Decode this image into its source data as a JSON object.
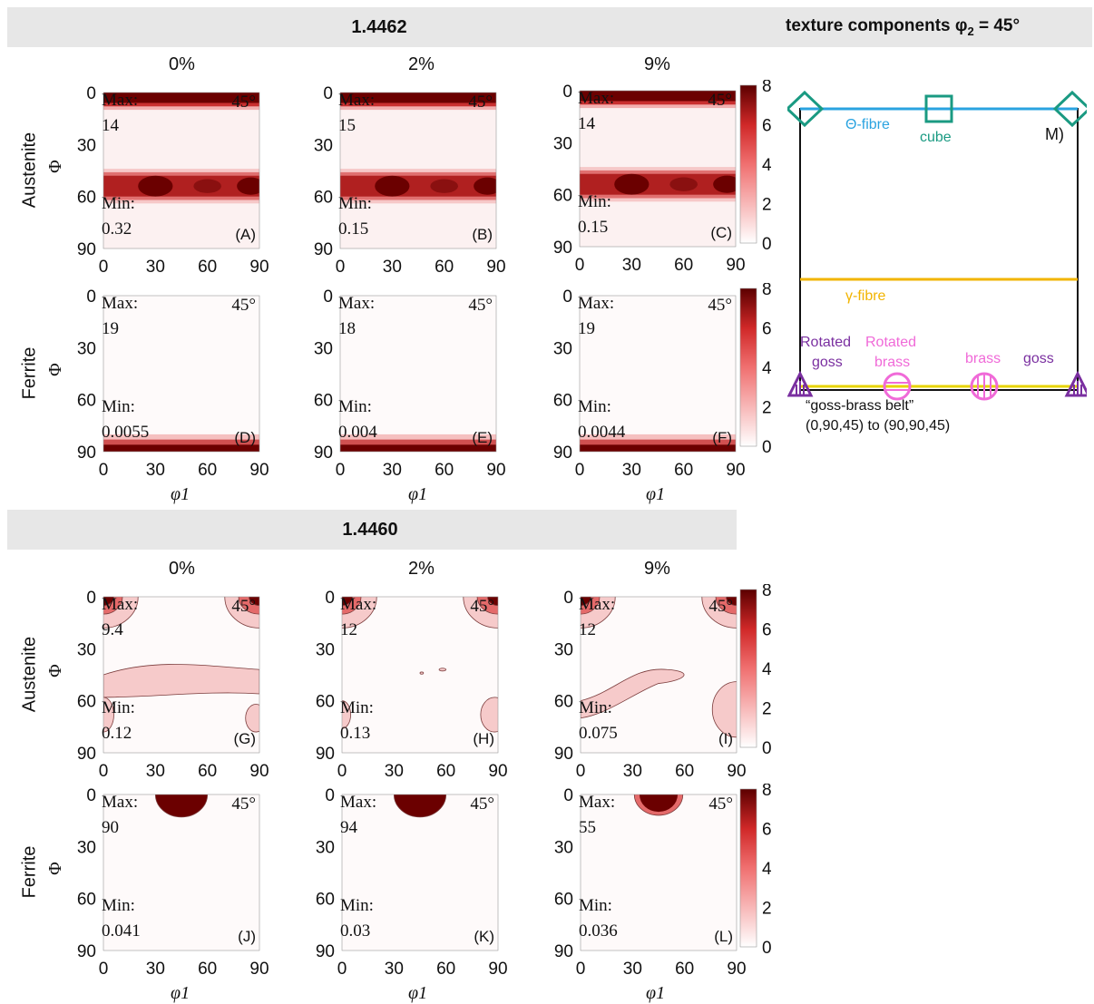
{
  "header": {
    "top_title": "1.4462",
    "bottom_title": "1.4460",
    "texture_title": "texture components φ",
    "texture_sub": "2",
    "texture_tail": " = 45°"
  },
  "columns": [
    "0%",
    "2%",
    "9%"
  ],
  "rows": {
    "austenite": "Austenite",
    "ferrite": "Ferrite"
  },
  "labels": {
    "max": "Max:",
    "min": "Min:",
    "angle": "45°",
    "phi": "Φ",
    "phi1": "φ1"
  },
  "colors": {
    "dark": "#6b0000",
    "mid": "#e84b4b",
    "light": "#fbe9ea",
    "banner": "#e7e7e7",
    "theta": "#2aa3e0",
    "gamma": "#f2b400",
    "belt": "#e7d400",
    "cube": "#1a9a82",
    "goss": "#7a2fa0",
    "brass": "#f06ad8"
  },
  "chart_data": [
    {
      "type": "heatmap",
      "panel": "(A)",
      "group": "1.4462",
      "phase": "Austenite",
      "strain": "0%",
      "max": "14",
      "min": "0.32",
      "xlim": [
        0,
        90
      ],
      "ylim": [
        0,
        90
      ],
      "xticks": [
        "0",
        "30",
        "60",
        "90"
      ],
      "yticks": [
        "0",
        "30",
        "60",
        "90"
      ],
      "pattern": "bands"
    },
    {
      "type": "heatmap",
      "panel": "(B)",
      "group": "1.4462",
      "phase": "Austenite",
      "strain": "2%",
      "max": "15",
      "min": "0.15",
      "xlim": [
        0,
        90
      ],
      "ylim": [
        0,
        90
      ],
      "xticks": [
        "0",
        "30",
        "60",
        "90"
      ],
      "yticks": [
        "0",
        "30",
        "60",
        "90"
      ],
      "pattern": "bands"
    },
    {
      "type": "heatmap",
      "panel": "(C)",
      "group": "1.4462",
      "phase": "Austenite",
      "strain": "9%",
      "max": "14",
      "min": "0.15",
      "xlim": [
        0,
        90
      ],
      "ylim": [
        0,
        90
      ],
      "xticks": [
        "0",
        "30",
        "60",
        "90"
      ],
      "yticks": [
        "0",
        "30",
        "60",
        "90"
      ],
      "pattern": "bands"
    },
    {
      "type": "heatmap",
      "panel": "(D)",
      "group": "1.4462",
      "phase": "Ferrite",
      "strain": "0%",
      "max": "19",
      "min": "0.0055",
      "xlim": [
        0,
        90
      ],
      "ylim": [
        0,
        90
      ],
      "xticks": [
        "0",
        "30",
        "60",
        "90"
      ],
      "yticks": [
        "0",
        "30",
        "60",
        "90"
      ],
      "pattern": "bottom"
    },
    {
      "type": "heatmap",
      "panel": "(E)",
      "group": "1.4462",
      "phase": "Ferrite",
      "strain": "2%",
      "max": "18",
      "min": "0.004",
      "xlim": [
        0,
        90
      ],
      "ylim": [
        0,
        90
      ],
      "xticks": [
        "0",
        "30",
        "60",
        "90"
      ],
      "yticks": [
        "0",
        "30",
        "60",
        "90"
      ],
      "pattern": "bottom"
    },
    {
      "type": "heatmap",
      "panel": "(F)",
      "group": "1.4462",
      "phase": "Ferrite",
      "strain": "9%",
      "max": "19",
      "min": "0.0044",
      "xlim": [
        0,
        90
      ],
      "ylim": [
        0,
        90
      ],
      "xticks": [
        "0",
        "30",
        "60",
        "90"
      ],
      "yticks": [
        "0",
        "30",
        "60",
        "90"
      ],
      "pattern": "bottom"
    },
    {
      "type": "heatmap",
      "panel": "(G)",
      "group": "1.4460",
      "phase": "Austenite",
      "strain": "0%",
      "max": "9.4",
      "min": "0.12",
      "xlim": [
        0,
        90
      ],
      "ylim": [
        0,
        90
      ],
      "xticks": [
        "0",
        "30",
        "60",
        "90"
      ],
      "yticks": [
        "0",
        "30",
        "60",
        "90"
      ],
      "pattern": "corners_band"
    },
    {
      "type": "heatmap",
      "panel": "(H)",
      "group": "1.4460",
      "phase": "Austenite",
      "strain": "2%",
      "max": "12",
      "min": "0.13",
      "xlim": [
        0,
        90
      ],
      "ylim": [
        0,
        90
      ],
      "xticks": [
        "0",
        "30",
        "60",
        "90"
      ],
      "yticks": [
        "0",
        "30",
        "60",
        "90"
      ],
      "pattern": "corners"
    },
    {
      "type": "heatmap",
      "panel": "(I)",
      "group": "1.4460",
      "phase": "Austenite",
      "strain": "9%",
      "max": "12",
      "min": "0.075",
      "xlim": [
        0,
        90
      ],
      "ylim": [
        0,
        90
      ],
      "xticks": [
        "0",
        "30",
        "60",
        "90"
      ],
      "yticks": [
        "0",
        "30",
        "60",
        "90"
      ],
      "pattern": "corners_blob"
    },
    {
      "type": "heatmap",
      "panel": "(J)",
      "group": "1.4460",
      "phase": "Ferrite",
      "strain": "0%",
      "max": "90",
      "min": "0.041",
      "xlim": [
        0,
        90
      ],
      "ylim": [
        0,
        90
      ],
      "xticks": [
        "0",
        "30",
        "60",
        "90"
      ],
      "yticks": [
        "0",
        "30",
        "60",
        "90"
      ],
      "pattern": "top_center"
    },
    {
      "type": "heatmap",
      "panel": "(K)",
      "group": "1.4460",
      "phase": "Ferrite",
      "strain": "2%",
      "max": "94",
      "min": "0.03",
      "xlim": [
        0,
        90
      ],
      "ylim": [
        0,
        90
      ],
      "xticks": [
        "0",
        "30",
        "60",
        "90"
      ],
      "yticks": [
        "0",
        "30",
        "60",
        "90"
      ],
      "pattern": "top_center"
    },
    {
      "type": "heatmap",
      "panel": "(L)",
      "group": "1.4460",
      "phase": "Ferrite",
      "strain": "9%",
      "max": "55",
      "min": "0.036",
      "xlim": [
        0,
        90
      ],
      "ylim": [
        0,
        90
      ],
      "xticks": [
        "0",
        "30",
        "60",
        "90"
      ],
      "yticks": [
        "0",
        "30",
        "60",
        "90"
      ],
      "pattern": "top_center_ring"
    }
  ],
  "colorbar": {
    "ticks": [
      "0",
      "2",
      "4",
      "6",
      "8"
    ],
    "range": [
      0,
      8
    ]
  },
  "schematic": {
    "panel": "M)",
    "theta": "Θ-fibre",
    "cube": "cube",
    "gamma": "γ-fibre",
    "rotated1": "Rotated",
    "goss1": "goss",
    "rotated2": "Rotated",
    "brass1": "brass",
    "brass2": "brass",
    "goss2": "goss",
    "belt": "“goss-brass belt”",
    "belt_range": "(0,90,45) to (90,90,45)"
  }
}
